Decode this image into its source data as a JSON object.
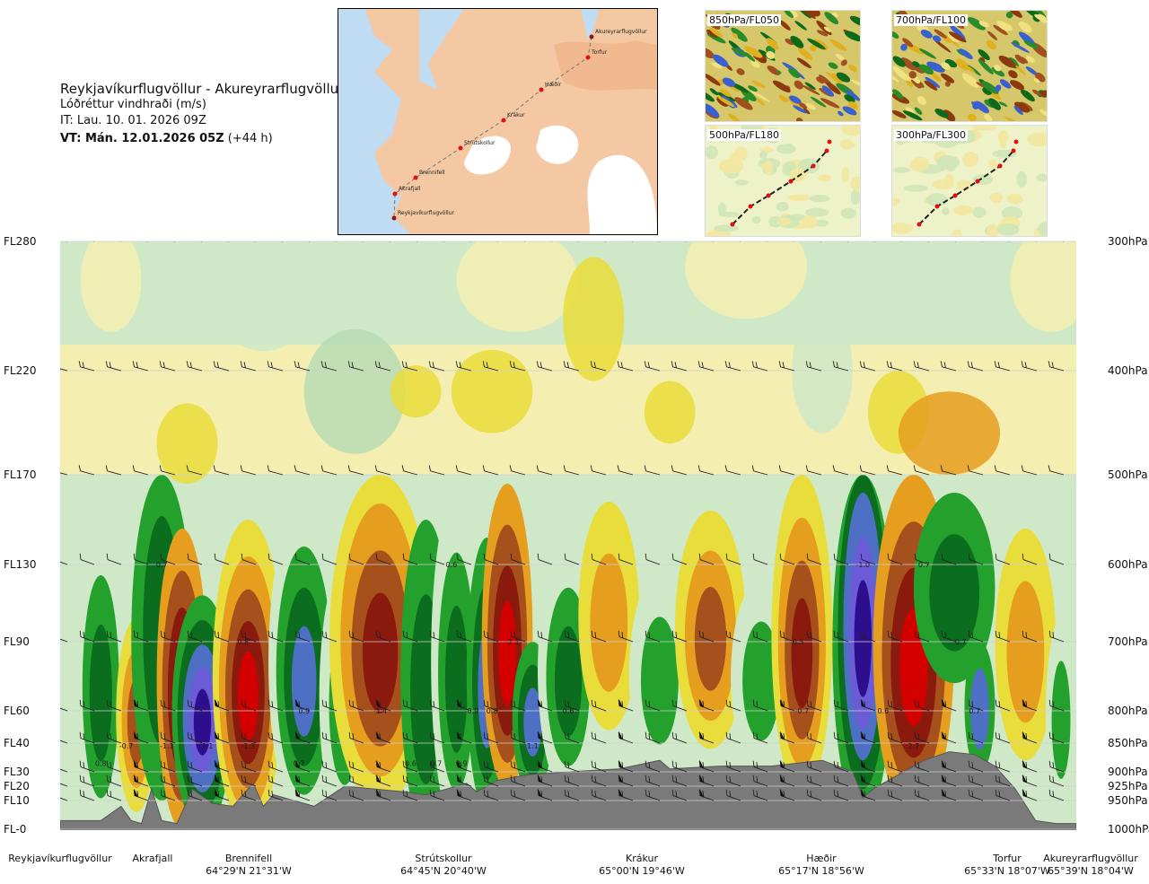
{
  "header": {
    "title": "Reykjavíkurflugvöllur - Akureyrarflugvöllur",
    "subtitle": "Lóðréttur vindhraði (m/s)",
    "issue_time": "IT: Lau. 10. 01. 2026 09Z",
    "valid_time": "VT: Mán. 12.01.2026 05Z",
    "lead_time": "(+44 h)"
  },
  "route_map": {
    "points": [
      "Akureyrarflugvöllur",
      "Torfur",
      "Hæðir",
      "Krákur",
      "Strútskollur",
      "Brennifell",
      "Akrafjall",
      "Reykjavíkurflugvöllur"
    ]
  },
  "thumbnails": [
    {
      "label": "850hPa/FL050",
      "kind": "wind"
    },
    {
      "label": "700hPa/FL100",
      "kind": "wind"
    },
    {
      "label": "500hPa/FL180",
      "kind": "route"
    },
    {
      "label": "300hPa/FL300",
      "kind": "route"
    }
  ],
  "colors": {
    "strong_up_red": "#d40000",
    "dark_red": "#8b1a0e",
    "brown": "#a6511c",
    "orange": "#e59e1e",
    "yellow": "#e9dd3b",
    "pale_yellow": "#f4efb0",
    "pale_green": "#cfe9c8",
    "green": "#23a12c",
    "dark_green": "#0b6e1e",
    "blue": "#4d6fc4",
    "violet": "#6c5bd6",
    "indigo": "#2d0e8c",
    "terrain": "#7a7a7a"
  },
  "chart_data": {
    "type": "heatmap",
    "title": "Lóðréttur vindhraði (m/s)",
    "y_left_levels": [
      {
        "label": "FL280",
        "hpa": 300
      },
      {
        "label": "FL220",
        "hpa": 400
      },
      {
        "label": "FL170",
        "hpa": 500
      },
      {
        "label": "FL130",
        "hpa": 600
      },
      {
        "label": "FL90",
        "hpa": 700
      },
      {
        "label": "FL60",
        "hpa": 800
      },
      {
        "label": "FL40",
        "hpa": 850
      },
      {
        "label": "FL30",
        "hpa": 900
      },
      {
        "label": "FL20",
        "hpa": 925
      },
      {
        "label": "FL10",
        "hpa": 950
      },
      {
        "label": "FL-0",
        "hpa": 1000
      }
    ],
    "y_right_labels": [
      "300hPa",
      "400hPa",
      "500hPa",
      "600hPa",
      "700hPa",
      "800hPa",
      "850hPa",
      "900hPa",
      "925hPa",
      "950hPa",
      "1000hPa"
    ],
    "x_stations": [
      {
        "name": "Reykjavíkurflugvöllur",
        "coord": ""
      },
      {
        "name": "Akrafjall",
        "coord": ""
      },
      {
        "name": "Brennifell",
        "coord": "64°29'N 21°31'W"
      },
      {
        "name": "Strútskollur",
        "coord": "64°45'N 20°40'W"
      },
      {
        "name": "Krákur",
        "coord": "65°00'N 19°46'W"
      },
      {
        "name": "Hæðir",
        "coord": "65°17'N 18°56'W"
      },
      {
        "name": "Torfur",
        "coord": "65°33'N 18°07'W"
      },
      {
        "name": "Akureyrarflugvöllur",
        "coord": "65°39'N 18°04'W"
      }
    ],
    "value_annotations": [
      {
        "x_km": 8,
        "hpa": 885,
        "value": "0.8"
      },
      {
        "x_km": 13,
        "hpa": 855,
        "value": "-0.7"
      },
      {
        "x_km": 21,
        "hpa": 855,
        "value": "-1.1"
      },
      {
        "x_km": 29,
        "hpa": 855,
        "value": "1.1"
      },
      {
        "x_km": 20,
        "hpa": 600,
        "value": "0.7"
      },
      {
        "x_km": 36,
        "hpa": 700,
        "value": "0.8"
      },
      {
        "x_km": 37,
        "hpa": 855,
        "value": "-1.3"
      },
      {
        "x_km": 47,
        "hpa": 885,
        "value": "0.7"
      },
      {
        "x_km": 48,
        "hpa": 800,
        "value": "0.9"
      },
      {
        "x_km": 63,
        "hpa": 800,
        "value": "-1.4"
      },
      {
        "x_km": 69,
        "hpa": 885,
        "value": "0.6"
      },
      {
        "x_km": 74,
        "hpa": 885,
        "value": "0.7"
      },
      {
        "x_km": 77,
        "hpa": 600,
        "value": "0.6"
      },
      {
        "x_km": 79,
        "hpa": 885,
        "value": "0.9"
      },
      {
        "x_km": 81,
        "hpa": 800,
        "value": "-0.9"
      },
      {
        "x_km": 85,
        "hpa": 800,
        "value": "0.8"
      },
      {
        "x_km": 89,
        "hpa": 700,
        "value": "-2.1"
      },
      {
        "x_km": 93,
        "hpa": 855,
        "value": "1.1"
      },
      {
        "x_km": 100,
        "hpa": 800,
        "value": "0.6"
      },
      {
        "x_km": 145,
        "hpa": 700,
        "value": "-0.5"
      },
      {
        "x_km": 146,
        "hpa": 800,
        "value": "-0.7"
      },
      {
        "x_km": 158,
        "hpa": 600,
        "value": "-1.0"
      },
      {
        "x_km": 162,
        "hpa": 800,
        "value": "0.6"
      },
      {
        "x_km": 168,
        "hpa": 855,
        "value": "2.7"
      },
      {
        "x_km": 170,
        "hpa": 600,
        "value": "0.7"
      },
      {
        "x_km": 180,
        "hpa": 800,
        "value": "0.7"
      },
      {
        "x_km": 177,
        "hpa": 700,
        "value": "-0.7"
      }
    ]
  }
}
